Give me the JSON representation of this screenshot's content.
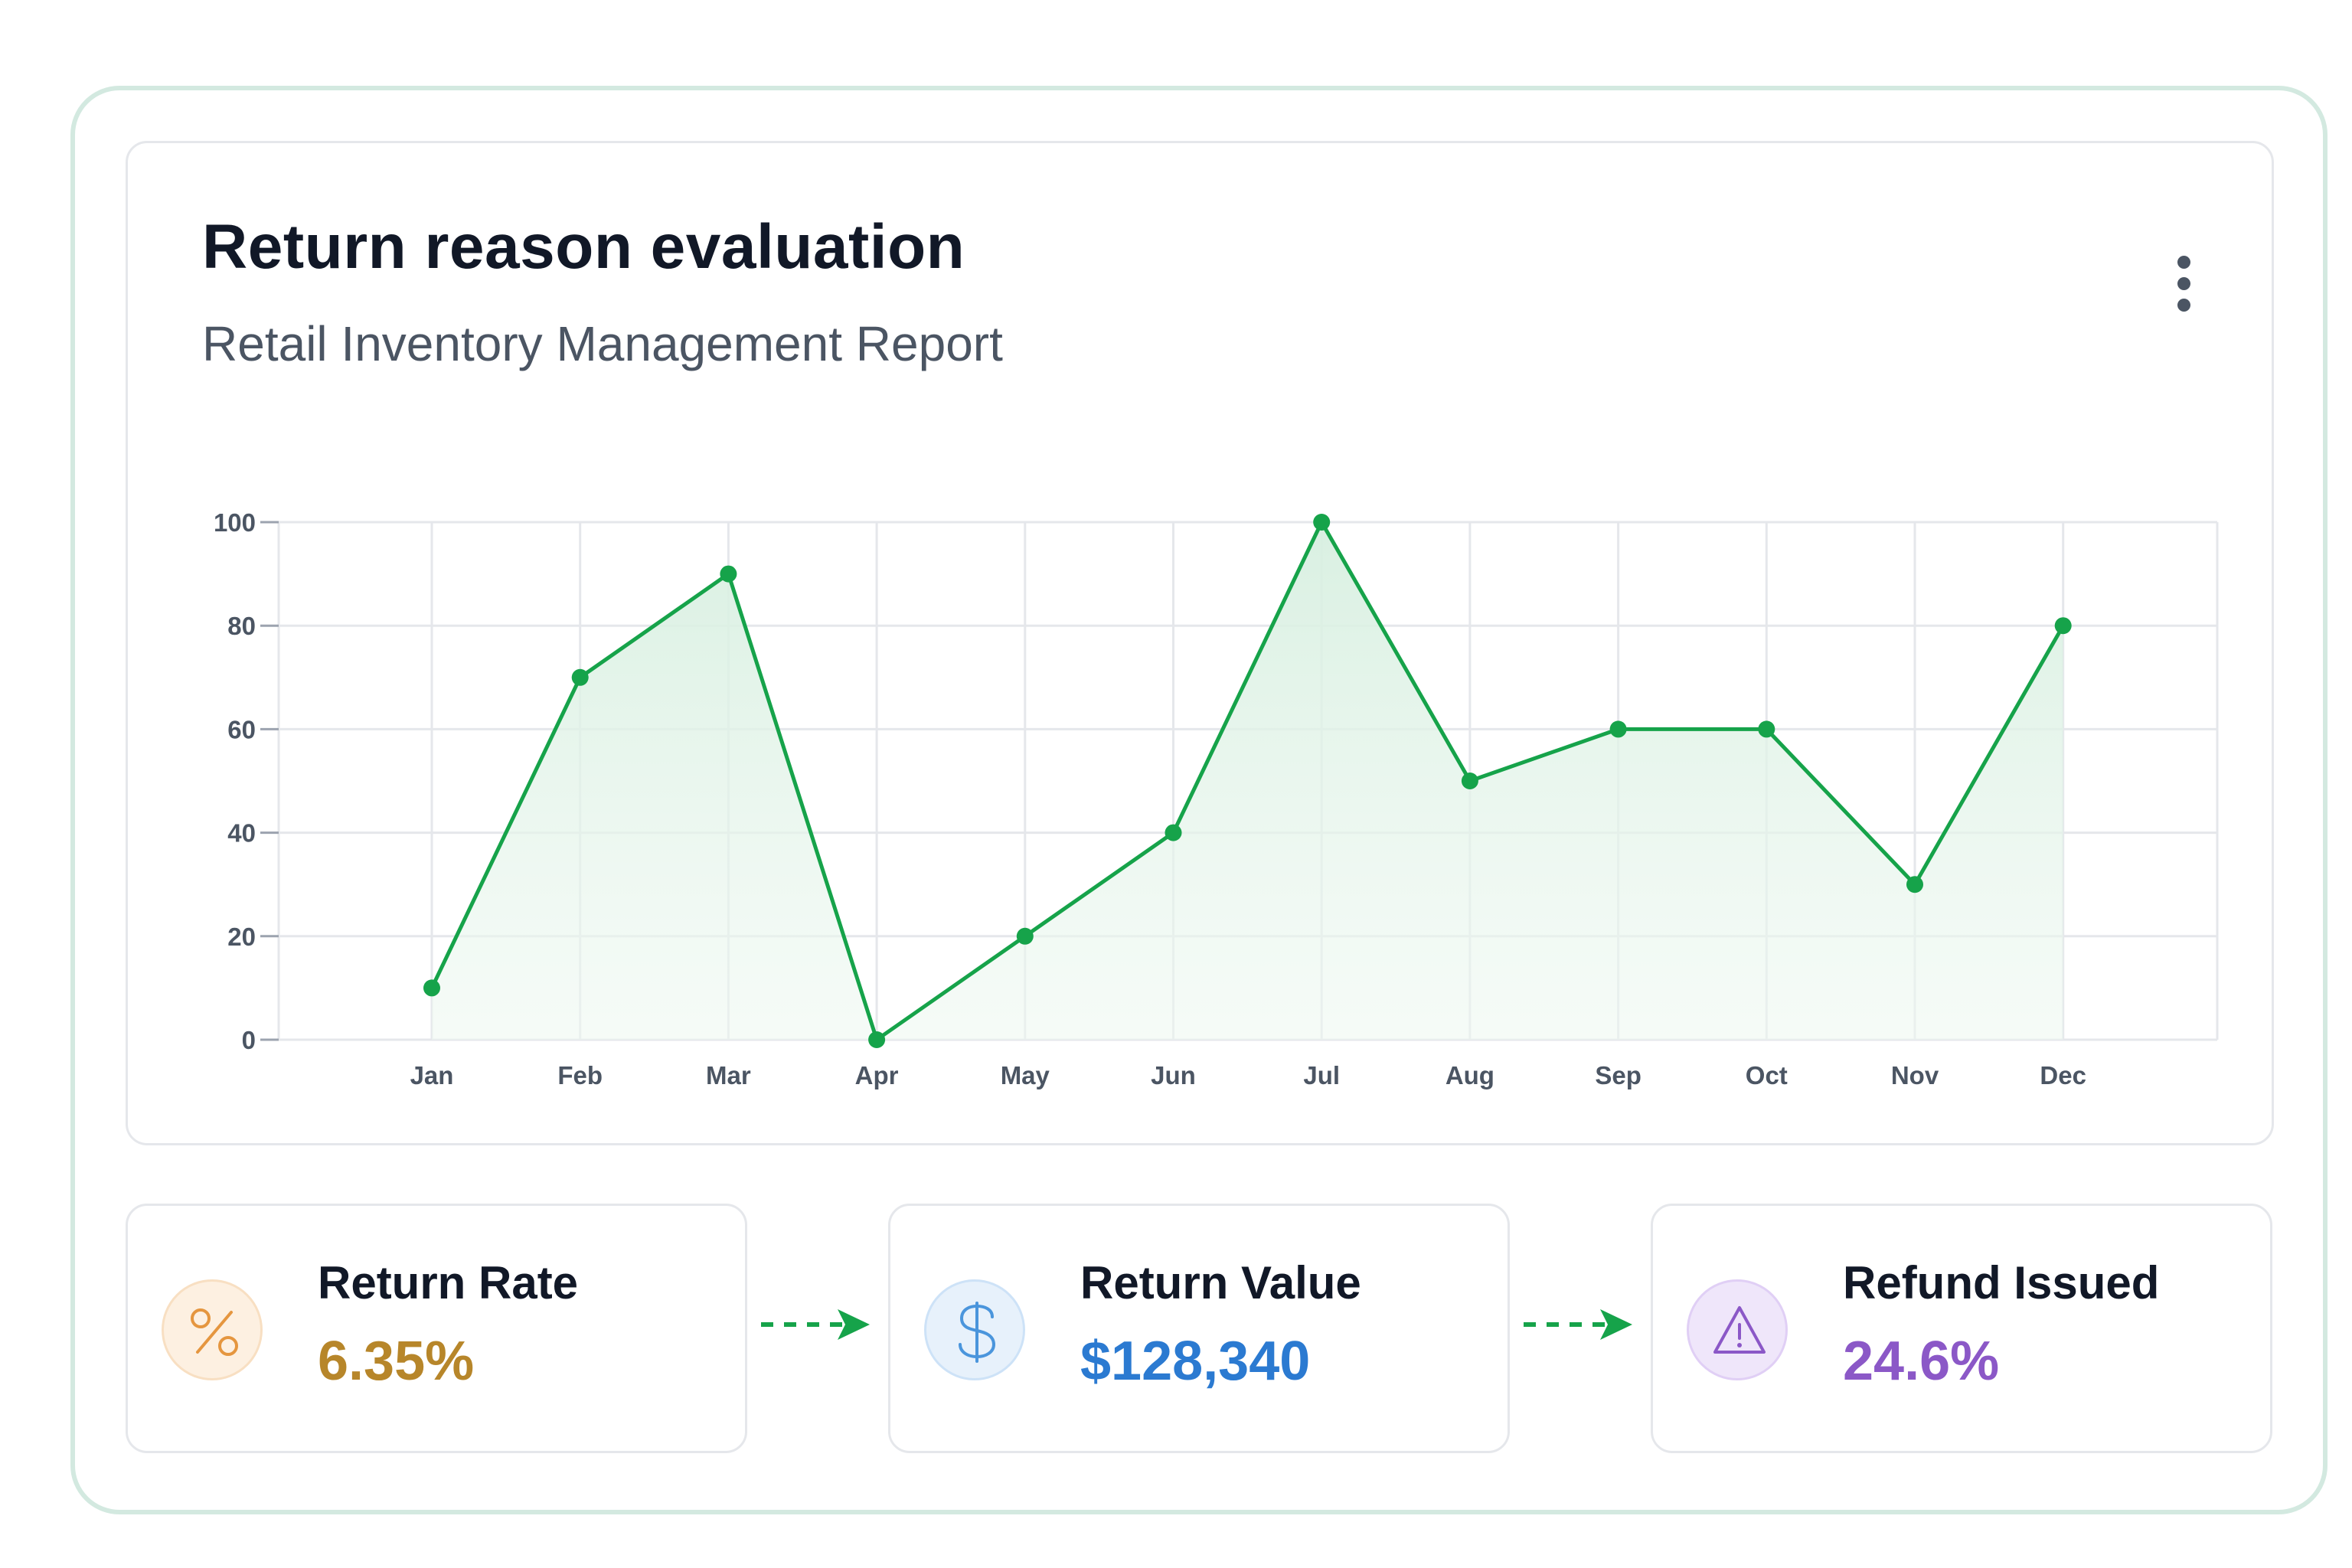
{
  "header": {
    "title": "Return reason evaluation",
    "subtitle": "Retail Inventory Management Report"
  },
  "chart_data": {
    "type": "area",
    "categories": [
      "Jan",
      "Feb",
      "Mar",
      "Apr",
      "May",
      "Jun",
      "Jul",
      "Aug",
      "Sep",
      "Oct",
      "Nov",
      "Dec"
    ],
    "series": [
      {
        "values": [
          10,
          70,
          90,
          0,
          20,
          40,
          100,
          50,
          60,
          60,
          30,
          80
        ]
      }
    ],
    "yticks": [
      0,
      20,
      40,
      60,
      80,
      100
    ],
    "ylim": [
      0,
      100
    ],
    "grid": true,
    "colors": {
      "line": "#16a34a",
      "fill": "#dcf2e4",
      "grid": "#e5e7eb",
      "axis_text": "#4b5563"
    }
  },
  "stats": [
    {
      "label": "Return Rate",
      "value": "6.35%",
      "icon": "percent-icon",
      "color": "#b7862a",
      "bg": "#fdf0e1",
      "ring": "#f8dfc2"
    },
    {
      "label": "Return Value",
      "value": "$128,340",
      "icon": "dollar-icon",
      "color": "#2b7ad1",
      "bg": "#e7f1fb",
      "ring": "#cde2f7"
    },
    {
      "label": "Refund Issued",
      "value": "24.6%",
      "icon": "warning-icon",
      "color": "#8b58c7",
      "bg": "#efe6fa",
      "ring": "#e0cff5"
    }
  ],
  "arrow_color": "#16a34a"
}
